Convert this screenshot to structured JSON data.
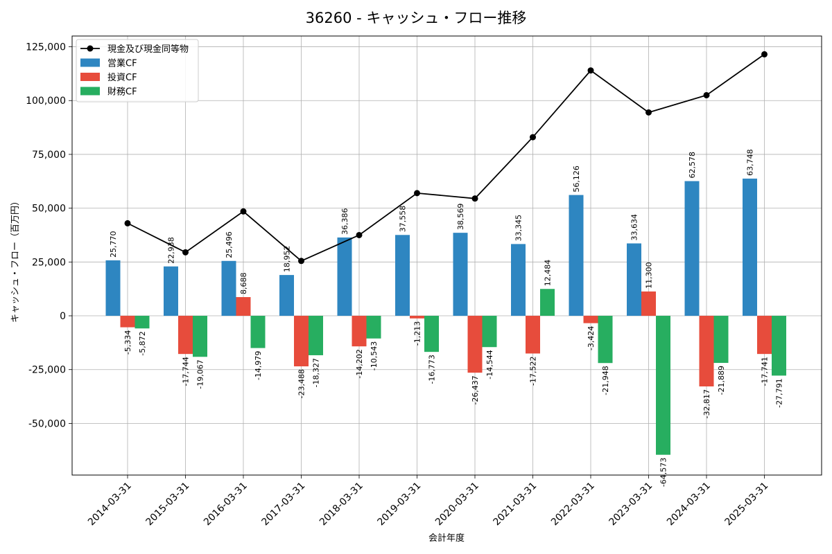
{
  "chart_data": {
    "type": "bar",
    "title": "36260 - キャッシュ・フロー推移",
    "xlabel": "会計年度",
    "ylabel": "キャッシュ・フロー（百万円）",
    "categories": [
      "2014-03-31",
      "2015-03-31",
      "2016-03-31",
      "2017-03-31",
      "2018-03-31",
      "2019-03-31",
      "2020-03-31",
      "2021-03-31",
      "2022-03-31",
      "2023-03-31",
      "2024-03-31",
      "2025-03-31"
    ],
    "ylim": [
      -74000,
      130000
    ],
    "yticks": [
      -50000,
      -25000,
      0,
      25000,
      50000,
      75000,
      100000,
      125000
    ],
    "ytick_labels": [
      "-50,000",
      "-25,000",
      "0",
      "25,000",
      "50,000",
      "75,000",
      "100,000",
      "125,000"
    ],
    "grid": true,
    "legend_position": "top-left",
    "series": [
      {
        "name": "営業CF",
        "kind": "bar",
        "color": "#2e86c1",
        "values": [
          25770,
          22938,
          25496,
          18952,
          36386,
          37558,
          38569,
          33345,
          56126,
          33634,
          62578,
          63748
        ],
        "labels": [
          "25,770",
          "22,938",
          "25,496",
          "18,952",
          "36,386",
          "37,558",
          "38,569",
          "33,345",
          "56,126",
          "33,634",
          "62,578",
          "63,748"
        ]
      },
      {
        "name": "投資CF",
        "kind": "bar",
        "color": "#e74c3c",
        "values": [
          -5334,
          -17744,
          8688,
          -23488,
          -14202,
          -1213,
          -26437,
          -17522,
          -3424,
          11300,
          -32817,
          -17741
        ],
        "labels": [
          "-5,334",
          "-17,744",
          "8,688",
          "-23,488",
          "-14,202",
          "-1,213",
          "-26,437",
          "-17,522",
          "-3,424",
          "11,300",
          "-32,817",
          "-17,741"
        ]
      },
      {
        "name": "財務CF",
        "kind": "bar",
        "color": "#27ae60",
        "values": [
          -5872,
          -19067,
          -14979,
          -18327,
          -10543,
          -16773,
          -14544,
          12484,
          -21948,
          -64573,
          -21889,
          -27791
        ],
        "labels": [
          "-5,872",
          "-19,067",
          "-14,979",
          "-18,327",
          "-10,543",
          "-16,773",
          "-14,544",
          "12,484",
          "-21,948",
          "-64,573",
          "-21,889",
          "-27,791"
        ]
      },
      {
        "name": "現金及び現金同等物",
        "kind": "line",
        "color": "#000000",
        "values": [
          43000,
          29500,
          48500,
          25500,
          37500,
          57000,
          54500,
          83000,
          114000,
          94500,
          102500,
          121500
        ]
      }
    ]
  }
}
